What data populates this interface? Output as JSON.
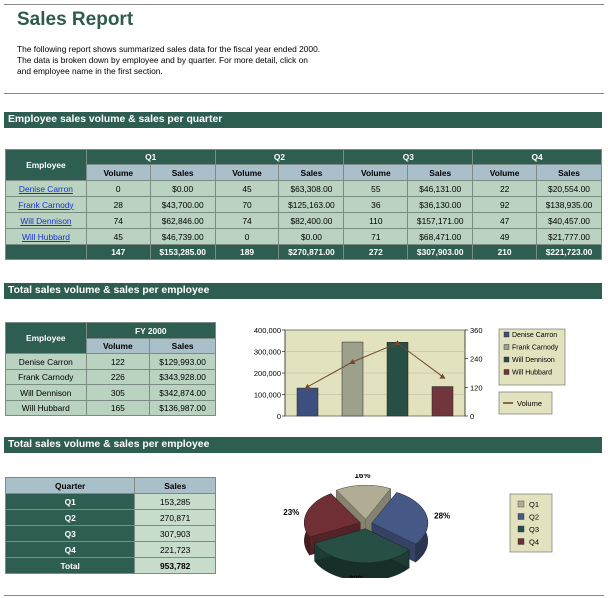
{
  "title": "Sales Report",
  "intro": [
    "The following report shows summarized sales data for the fiscal year ended 2000.",
    "The data is broken down by employee and by quarter.  For more detail, click on",
    "and employee name in the first section."
  ],
  "sections": [
    "Employee sales volume & sales per quarter",
    "Total sales volume & sales per employee",
    "Total sales volume & sales per employee"
  ],
  "quarter_table": {
    "employee_header": "Employee",
    "quarters": [
      "Q1",
      "Q2",
      "Q3",
      "Q4"
    ],
    "sub_headers": [
      "Volume",
      "Sales"
    ],
    "rows": [
      {
        "name": "Denise Carron",
        "cells": [
          "0",
          "$0.00",
          "45",
          "$63,308.00",
          "55",
          "$46,131.00",
          "22",
          "$20,554.00"
        ]
      },
      {
        "name": "Frank Carnody",
        "cells": [
          "28",
          "$43,700.00",
          "70",
          "$125,163.00",
          "36",
          "$36,130.00",
          "92",
          "$138,935.00"
        ]
      },
      {
        "name": "Will Dennison",
        "cells": [
          "74",
          "$62,846.00",
          "74",
          "$82,400.00",
          "110",
          "$157,171.00",
          "47",
          "$40,457.00"
        ]
      },
      {
        "name": "Will Hubbard",
        "cells": [
          "45",
          "$46,739.00",
          "0",
          "$0.00",
          "71",
          "$68,471.00",
          "49",
          "$21,777.00"
        ]
      }
    ],
    "totals": [
      "147",
      "$153,285.00",
      "189",
      "$270,871.00",
      "272",
      "$307,903.00",
      "210",
      "$221,723.00"
    ]
  },
  "fy_table": {
    "employee_header": "Employee",
    "period": "FY 2000",
    "sub_headers": [
      "Volume",
      "Sales"
    ],
    "rows": [
      {
        "name": "Denise Carron",
        "volume": "122",
        "sales": "$129,993.00"
      },
      {
        "name": "Frank Carnody",
        "volume": "226",
        "sales": "$343,928.00"
      },
      {
        "name": "Will Dennison",
        "volume": "305",
        "sales": "$342,874.00"
      },
      {
        "name": "Will Hubbard",
        "volume": "165",
        "sales": "$136,987.00"
      }
    ]
  },
  "quarter_sales_table": {
    "headers": [
      "Quarter",
      "Sales"
    ],
    "rows": [
      {
        "quarter": "Q1",
        "sales": "153,285"
      },
      {
        "quarter": "Q2",
        "sales": "270,871"
      },
      {
        "quarter": "Q3",
        "sales": "307,903"
      },
      {
        "quarter": "Q4",
        "sales": "221,723"
      }
    ],
    "total_label": "Total",
    "total_value": "953,782"
  },
  "chart_data": [
    {
      "type": "bar",
      "categories": [
        "Denise Carron",
        "Frank Carnody",
        "Will Dennison",
        "Will Hubbard"
      ],
      "series": [
        {
          "name": "Sales",
          "values": [
            129993,
            343928,
            342874,
            136987
          ],
          "colors": [
            "#3d4f7e",
            "#9da08a",
            "#284f45",
            "#71363c"
          ]
        },
        {
          "name": "Volume",
          "axis": "right",
          "values": [
            122,
            226,
            305,
            165
          ],
          "color": "#6e4a2e"
        }
      ],
      "legend": [
        "Denise Carron",
        "Frank Carnody",
        "Will Dennison",
        "Will Hubbard"
      ],
      "line_legend": "Volume",
      "ylim": [
        0,
        400000
      ],
      "yticks": [
        "0",
        "100,000",
        "200,000",
        "300,000",
        "400,000"
      ],
      "y2lim": [
        0,
        360
      ],
      "y2ticks": [
        "0",
        "120",
        "240",
        "360"
      ],
      "legend_position": "right"
    },
    {
      "type": "pie",
      "categories": [
        "Q1",
        "Q2",
        "Q3",
        "Q4"
      ],
      "values": [
        153285,
        270871,
        307903,
        221723
      ],
      "labels": [
        "16%",
        "28%",
        "32%",
        "23%"
      ],
      "colors": [
        "#b1ad95",
        "#465885",
        "#284f45",
        "#6f2f35"
      ],
      "legend_position": "right"
    }
  ]
}
